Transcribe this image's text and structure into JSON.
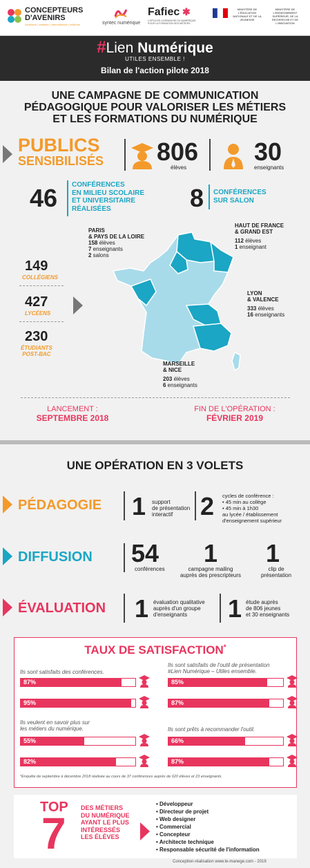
{
  "logos": {
    "concepteurs_line1": "CONCEPTEURS",
    "concepteurs_line2": "D'AVENIRS",
    "concepteurs_tag": "confiance | ambition | bienveillance | réflexion",
    "syntec": "syntec numérique",
    "fafiec": "Fafiec",
    "fafiec_tag": "L'OPCA DE LA BRANCHE DU NUMÉRIQUE POUR LA FORMATION DES MÉTIERS",
    "ministere1": "MINISTÈRE DE L'ÉDUCATION NATIONALE ET DE LA JEUNESSE",
    "ministere2": "MINISTÈRE DE L'ENSEIGNEMENT SUPÉRIEUR, DE LA RECHERCHE ET DE L'INNOVATION"
  },
  "banner": {
    "hash": "#",
    "title_a": "Lien ",
    "title_b": "Numérique",
    "subtitle": "UTILES ENSEMBLE !",
    "bilan": "Bilan de l'action pilote 2018"
  },
  "campaign": {
    "line1": "UNE CAMPAGNE DE COMMUNICATION",
    "line2": "PÉDAGOGIQUE POUR VALORISER LES MÉTIERS",
    "line3": "ET LES FORMATIONS DU NUMÉRIQUE"
  },
  "publics": {
    "line1": "PUBLICS",
    "line2": "SENSIBILISÉS",
    "eleves_num": "806",
    "eleves_lbl": "élèves",
    "ens_num": "30",
    "ens_lbl": "enseignants"
  },
  "conf": {
    "num1": "46",
    "lbl1a": "CONFÉRENCES",
    "lbl1b": "EN MILIEU SCOLAIRE",
    "lbl1c": "ET UNIVERSITAIRE",
    "lbl1d": "RÉALISÉES",
    "num2": "8",
    "lbl2a": "CONFÉRENCES",
    "lbl2b": "SUR SALON"
  },
  "levels": [
    {
      "num": "149",
      "lbl": "COLLÉGIENS"
    },
    {
      "num": "427",
      "lbl": "LYCÉENS"
    },
    {
      "num": "230",
      "lbl1": "ÉTUDIANTS",
      "lbl2": "POST-BAC"
    }
  ],
  "regions": {
    "paris": {
      "name1": "PARIS",
      "name2": "& PAYS DE LA LOIRE",
      "l1n": "158",
      "l1": " élèves",
      "l2n": "7",
      "l2": " enseignants",
      "l3n": "2",
      "l3": " salons"
    },
    "hdf": {
      "name1": "HAUT DE FRANCE",
      "name2": "& GRAND EST",
      "l1n": "112",
      "l1": " élèves",
      "l2n": "1",
      "l2": " enseignant"
    },
    "lyon": {
      "name1": "LYON",
      "name2": "& VALENCE",
      "l1n": "333",
      "l1": " élèves",
      "l2n": "16",
      "l2": " enseignants"
    },
    "marseille": {
      "name1": "MARSEILLE",
      "name2": "& NICE",
      "l1n": "203",
      "l1": " élèves",
      "l2n": "6",
      "l2": " enseignants"
    }
  },
  "dates": {
    "launch_lbl": "LANCEMENT :",
    "launch": "SEPTEMBRE 2018",
    "end_lbl": "FIN DE L'OPÉRATION :",
    "end": "FÉVRIER 2019"
  },
  "volets": {
    "title": "UNE OPÉRATION EN 3 VOLETS",
    "peda": {
      "name": "PÉDAGOGIE",
      "n1": "1",
      "t1a": "support",
      "t1b": "de présentation",
      "t1c": "interactif",
      "n2": "2",
      "t2a": "cycles de conférence :",
      "t2b": "• 45 min au collège",
      "t2c": "• 45 min à 1h30",
      "t2d": "au lycée / établissement",
      "t2e": "d'enseignement supérieur"
    },
    "diff": {
      "name": "DIFFUSION",
      "n1": "54",
      "t1": "conférences",
      "n2": "1",
      "t2a": "campagne mailing",
      "t2b": "auprès des prescripteurs",
      "n3": "1",
      "t3a": "clip de",
      "t3b": "présentation"
    },
    "eval": {
      "name": "ÉVALUATION",
      "n1": "1",
      "t1a": "évaluation qualitative",
      "t1b": "auprès d'un groupe",
      "t1c": "d'enseignants",
      "n2": "1",
      "t2a": "étude auprès",
      "t2b": "de 806 jeunes",
      "t2c": "et 30 enseignants"
    }
  },
  "satisfaction": {
    "title": "TAUX DE SATISFACTION",
    "star": "*",
    "q1": "Ils sont satisfaits des conférences.",
    "q2a": "Ils sont satisfaits de l'outil de présentation",
    "q2b": "#Lien Numérique – Utiles ensemble.",
    "q3a": "Ils veulent en savoir plus sur",
    "q3b": "les métiers du numérique.",
    "q4": "Ils sont prêts à recommander l'outil.",
    "bars": [
      {
        "value": 87,
        "label": "87%"
      },
      {
        "value": 95,
        "label": "95%"
      },
      {
        "value": 85,
        "label": "85%"
      },
      {
        "value": 87,
        "label": "87%"
      },
      {
        "value": 55,
        "label": "55%"
      },
      {
        "value": 82,
        "label": "82%"
      },
      {
        "value": 66,
        "label": "66%"
      },
      {
        "value": 87,
        "label": "87%"
      }
    ],
    "footnote": "*Enquête de septembre à décembre 2018 réalisée au cours de 37 conférences auprès de 620 élèves et 23 enseignants."
  },
  "top7": {
    "top": "TOP",
    "seven": "7",
    "l1": "DES MÉTIERS",
    "l2": "DU NUMÉRIQUE",
    "l3": "AYANT LE PLUS",
    "l4": "INTÉRESSÉS",
    "l5": "LES ÉLÈVES",
    "jobs": [
      "• Développeur",
      "• Directeur de projet",
      "• Web designer",
      "• Commercial",
      "• Concepteur",
      "• Architecte technique",
      "• Responsable sécurité de l'information"
    ]
  },
  "credit": "Conception-réalisation www.le-manege.com - 2019",
  "colors": {
    "orange": "#f39a2b",
    "cyan": "#1aa6c4",
    "pink": "#e8355e",
    "dark": "#2b2b2b"
  }
}
